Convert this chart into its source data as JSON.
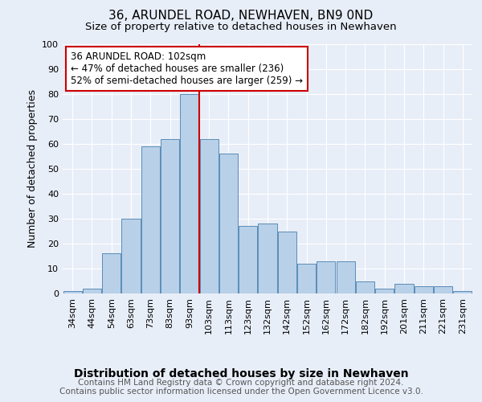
{
  "title": "36, ARUNDEL ROAD, NEWHAVEN, BN9 0ND",
  "subtitle": "Size of property relative to detached houses in Newhaven",
  "xlabel": "Distribution of detached houses by size in Newhaven",
  "ylabel": "Number of detached properties",
  "footer_line1": "Contains HM Land Registry data © Crown copyright and database right 2024.",
  "footer_line2": "Contains public sector information licensed under the Open Government Licence v3.0.",
  "bar_labels": [
    "34sqm",
    "44sqm",
    "54sqm",
    "63sqm",
    "73sqm",
    "83sqm",
    "93sqm",
    "103sqm",
    "113sqm",
    "123sqm",
    "132sqm",
    "142sqm",
    "152sqm",
    "162sqm",
    "172sqm",
    "182sqm",
    "192sqm",
    "201sqm",
    "211sqm",
    "221sqm",
    "231sqm"
  ],
  "bar_values": [
    1,
    2,
    16,
    30,
    59,
    62,
    80,
    62,
    56,
    27,
    28,
    25,
    12,
    13,
    13,
    5,
    2,
    4,
    3,
    3,
    1
  ],
  "bar_color": "#b8d0e8",
  "bar_edge_color": "#5b8db8",
  "reference_line_index": 7,
  "reference_line_color": "#cc0000",
  "annotation_text": "36 ARUNDEL ROAD: 102sqm\n← 47% of detached houses are smaller (236)\n52% of semi-detached houses are larger (259) →",
  "annotation_box_color": "#ffffff",
  "annotation_box_edge_color": "#cc0000",
  "ylim": [
    0,
    100
  ],
  "yticks": [
    0,
    10,
    20,
    30,
    40,
    50,
    60,
    70,
    80,
    90,
    100
  ],
  "title_fontsize": 11,
  "subtitle_fontsize": 9.5,
  "xlabel_fontsize": 10,
  "ylabel_fontsize": 9,
  "tick_fontsize": 8,
  "footer_fontsize": 7.5,
  "annotation_fontsize": 8.5,
  "background_color": "#e8eef8",
  "plot_background_color": "#e8eef8"
}
